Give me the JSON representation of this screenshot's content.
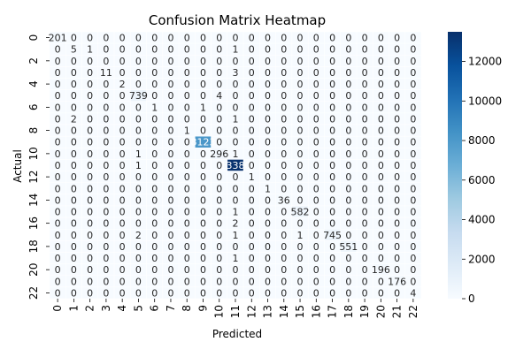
{
  "chart_data": {
    "type": "heatmap",
    "title": "Confusion Matrix Heatmap",
    "xlabel": "Predicted",
    "ylabel": "Actual",
    "x_labels": [
      "0",
      "1",
      "2",
      "3",
      "4",
      "5",
      "6",
      "7",
      "8",
      "9",
      "10",
      "11",
      "12",
      "13",
      "14",
      "15",
      "16",
      "17",
      "18",
      "19",
      "20",
      "21",
      "22"
    ],
    "y_labels": [
      "0",
      "1",
      "2",
      "3",
      "4",
      "5",
      "6",
      "7",
      "8",
      "9",
      "10",
      "11",
      "12",
      "13",
      "14",
      "15",
      "16",
      "17",
      "18",
      "19",
      "20",
      "21",
      "22"
    ],
    "y_tick_labels": [
      "0",
      "2",
      "4",
      "6",
      "8",
      "10",
      "12",
      "14",
      "16",
      "18",
      "20",
      "22"
    ],
    "colorbar_ticks": [
      "0",
      "2000",
      "4000",
      "6000",
      "8000",
      "10000",
      "12000"
    ],
    "colorbar_range": [
      0,
      13500
    ],
    "colormap": [
      "#f7fbff",
      "#deebf7",
      "#c6dbef",
      "#9ecae1",
      "#6baed6",
      "#4292c6",
      "#2171b5",
      "#08519c",
      "#08306b"
    ],
    "matrix": [
      [
        201,
        0,
        0,
        0,
        0,
        0,
        0,
        0,
        0,
        0,
        0,
        0,
        0,
        0,
        0,
        0,
        0,
        0,
        0,
        0,
        0,
        0,
        0
      ],
      [
        0,
        5,
        1,
        0,
        0,
        0,
        0,
        0,
        0,
        0,
        0,
        1,
        0,
        0,
        0,
        0,
        0,
        0,
        0,
        0,
        0,
        0,
        0
      ],
      [
        0,
        0,
        0,
        0,
        0,
        0,
        0,
        0,
        0,
        0,
        0,
        0,
        0,
        0,
        0,
        0,
        0,
        0,
        0,
        0,
        0,
        0,
        0
      ],
      [
        0,
        0,
        0,
        11,
        0,
        0,
        0,
        0,
        0,
        0,
        0,
        3,
        0,
        0,
        0,
        0,
        0,
        0,
        0,
        0,
        0,
        0,
        0
      ],
      [
        0,
        0,
        0,
        0,
        2,
        0,
        0,
        0,
        0,
        0,
        0,
        0,
        0,
        0,
        0,
        0,
        0,
        0,
        0,
        0,
        0,
        0,
        0
      ],
      [
        0,
        0,
        0,
        0,
        0,
        739,
        0,
        0,
        0,
        0,
        4,
        0,
        0,
        0,
        0,
        0,
        0,
        0,
        0,
        0,
        0,
        0,
        0
      ],
      [
        0,
        0,
        0,
        0,
        0,
        0,
        1,
        0,
        0,
        1,
        0,
        0,
        0,
        0,
        0,
        0,
        0,
        0,
        0,
        0,
        0,
        0,
        0
      ],
      [
        0,
        2,
        0,
        0,
        0,
        0,
        0,
        0,
        0,
        0,
        0,
        1,
        0,
        0,
        0,
        0,
        0,
        0,
        0,
        0,
        0,
        0,
        0
      ],
      [
        0,
        0,
        0,
        0,
        0,
        0,
        0,
        0,
        1,
        0,
        0,
        0,
        0,
        0,
        0,
        0,
        0,
        0,
        0,
        0,
        0,
        0,
        0
      ],
      [
        0,
        0,
        0,
        0,
        0,
        0,
        0,
        0,
        0,
        8123,
        0,
        0,
        0,
        0,
        0,
        0,
        0,
        0,
        0,
        0,
        0,
        0,
        0
      ],
      [
        0,
        0,
        0,
        0,
        0,
        1,
        0,
        0,
        0,
        0,
        296,
        1,
        0,
        0,
        0,
        0,
        0,
        0,
        0,
        0,
        0,
        0,
        0
      ],
      [
        0,
        0,
        0,
        0,
        0,
        1,
        0,
        0,
        0,
        0,
        0,
        13380,
        0,
        0,
        0,
        0,
        0,
        0,
        0,
        0,
        0,
        0,
        0
      ],
      [
        0,
        0,
        0,
        0,
        0,
        0,
        0,
        0,
        0,
        0,
        0,
        0,
        1,
        0,
        0,
        0,
        0,
        0,
        0,
        0,
        0,
        0,
        0
      ],
      [
        0,
        0,
        0,
        0,
        0,
        0,
        0,
        0,
        0,
        0,
        0,
        0,
        0,
        1,
        0,
        0,
        0,
        0,
        0,
        0,
        0,
        0,
        0
      ],
      [
        0,
        0,
        0,
        0,
        0,
        0,
        0,
        0,
        0,
        0,
        0,
        0,
        0,
        0,
        36,
        0,
        0,
        0,
        0,
        0,
        0,
        0,
        0
      ],
      [
        0,
        0,
        0,
        0,
        0,
        0,
        0,
        0,
        0,
        0,
        0,
        1,
        0,
        0,
        0,
        582,
        0,
        0,
        0,
        0,
        0,
        0,
        0
      ],
      [
        0,
        0,
        0,
        0,
        0,
        0,
        0,
        0,
        0,
        0,
        0,
        2,
        0,
        0,
        0,
        0,
        0,
        0,
        0,
        0,
        0,
        0,
        0
      ],
      [
        0,
        0,
        0,
        0,
        0,
        2,
        0,
        0,
        0,
        0,
        0,
        1,
        0,
        0,
        0,
        1,
        0,
        745,
        0,
        0,
        0,
        0,
        0
      ],
      [
        0,
        0,
        0,
        0,
        0,
        0,
        0,
        0,
        0,
        0,
        0,
        0,
        0,
        0,
        0,
        0,
        0,
        0,
        551,
        0,
        0,
        0,
        0
      ],
      [
        0,
        0,
        0,
        0,
        0,
        0,
        0,
        0,
        0,
        0,
        0,
        1,
        0,
        0,
        0,
        0,
        0,
        0,
        0,
        0,
        0,
        0,
        0
      ],
      [
        0,
        0,
        0,
        0,
        0,
        0,
        0,
        0,
        0,
        0,
        0,
        0,
        0,
        0,
        0,
        0,
        0,
        0,
        0,
        0,
        196,
        0,
        0
      ],
      [
        0,
        0,
        0,
        0,
        0,
        0,
        0,
        0,
        0,
        0,
        0,
        0,
        0,
        0,
        0,
        0,
        0,
        0,
        0,
        0,
        0,
        176,
        0
      ],
      [
        0,
        0,
        0,
        0,
        0,
        0,
        0,
        0,
        0,
        0,
        0,
        0,
        0,
        0,
        0,
        0,
        0,
        0,
        0,
        0,
        0,
        0,
        4
      ]
    ]
  }
}
